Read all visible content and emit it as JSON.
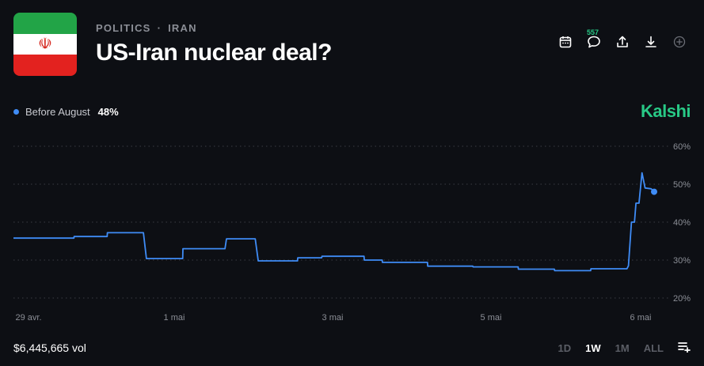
{
  "header": {
    "category": "POLITICS",
    "separator": "·",
    "subcategory": "IRAN",
    "title": "US-Iran nuclear deal?",
    "comment_count": "557",
    "flag_icon": "iran-flag-icon",
    "flag_colors": [
      "#22a447",
      "#ffffff",
      "#e3221f"
    ]
  },
  "legend": {
    "label": "Before August",
    "value": "48%",
    "color": "#3f8cf6"
  },
  "brand": "Kalshi",
  "brand_color": "#28c986",
  "chart_data": {
    "type": "line",
    "x_tick_labels": [
      "29 avr.",
      "1 mai",
      "3 mai",
      "5 mai",
      "6 mai"
    ],
    "y_tick_labels": [
      "60%",
      "50%",
      "40%",
      "30%",
      "20%"
    ],
    "ylim": [
      20,
      60
    ],
    "grid": true,
    "series": [
      {
        "color": "#3f8cf6",
        "points": [
          [
            "2025-04-28T12:00",
            35.8
          ],
          [
            "2025-04-29T08:00",
            35.8
          ],
          [
            "2025-04-29T08:05",
            36.2
          ],
          [
            "2025-04-29T19:00",
            36.2
          ],
          [
            "2025-04-29T19:05",
            37.2
          ],
          [
            "2025-04-30T07:00",
            37.2
          ],
          [
            "2025-04-30T08:00",
            30.4
          ],
          [
            "2025-04-30T20:00",
            30.4
          ],
          [
            "2025-04-30T20:05",
            33.0
          ],
          [
            "2025-05-01T10:00",
            33.0
          ],
          [
            "2025-05-01T10:30",
            35.6
          ],
          [
            "2025-05-01T20:00",
            35.6
          ],
          [
            "2025-05-01T21:00",
            29.8
          ],
          [
            "2025-05-02T10:00",
            29.8
          ],
          [
            "2025-05-02T10:05",
            30.6
          ],
          [
            "2025-05-02T18:00",
            30.6
          ],
          [
            "2025-05-02T18:05",
            31.0
          ],
          [
            "2025-05-03T08:00",
            31.0
          ],
          [
            "2025-05-03T08:05",
            30.0
          ],
          [
            "2025-05-03T14:00",
            30.0
          ],
          [
            "2025-05-03T14:05",
            29.4
          ],
          [
            "2025-05-04T05:00",
            29.4
          ],
          [
            "2025-05-04T05:05",
            28.4
          ],
          [
            "2025-05-04T20:00",
            28.4
          ],
          [
            "2025-05-04T20:05",
            28.2
          ],
          [
            "2025-05-05T11:00",
            28.2
          ],
          [
            "2025-05-05T11:05",
            27.6
          ],
          [
            "2025-05-05T23:00",
            27.6
          ],
          [
            "2025-05-05T23:05",
            27.2
          ],
          [
            "2025-05-06T11:00",
            27.2
          ],
          [
            "2025-05-06T11:05",
            27.7
          ],
          [
            "2025-05-06T23:00",
            27.7
          ],
          [
            "2025-05-06T23:30",
            28.5
          ],
          [
            "2025-05-07T00:30",
            40.0
          ],
          [
            "2025-05-07T01:30",
            40.0
          ],
          [
            "2025-05-07T02:00",
            45.0
          ],
          [
            "2025-05-07T03:00",
            45.0
          ],
          [
            "2025-05-07T04:00",
            53.0
          ],
          [
            "2025-05-07T05:00",
            49.0
          ],
          [
            "2025-05-07T07:00",
            48.8
          ],
          [
            "2025-05-07T08:00",
            48.0
          ]
        ]
      }
    ]
  },
  "footer": {
    "volume": "$6,445,665 vol",
    "ranges": [
      "1D",
      "1W",
      "1M",
      "ALL"
    ],
    "active_range": "1W"
  }
}
